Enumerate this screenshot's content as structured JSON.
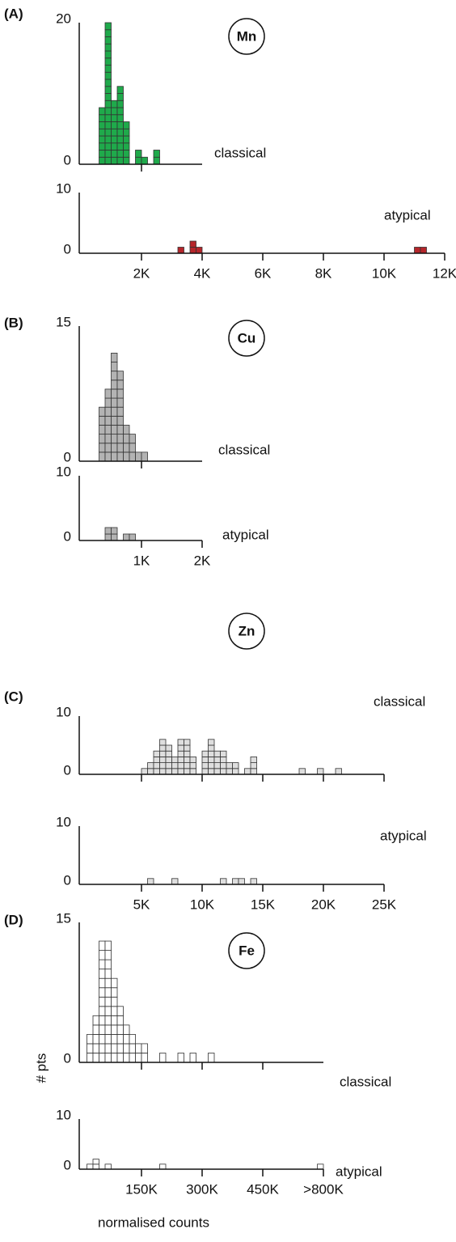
{
  "chart_data": [
    {
      "type": "histogram",
      "panel_label": "(A)",
      "element": "Mn",
      "title": "classical",
      "color": "#1faa4b",
      "bins": [
        600,
        800,
        1000,
        1200,
        1400,
        1600,
        1800,
        2000,
        2200,
        2400,
        2600
      ],
      "values": [
        8,
        20,
        9,
        11,
        6,
        0,
        2,
        1,
        0,
        2
      ],
      "xlim": [
        0,
        4000
      ],
      "xticks": [
        2000
      ],
      "tick_labels": false,
      "ylim": [
        0,
        20
      ],
      "yticks": [
        0,
        20
      ]
    },
    {
      "type": "histogram",
      "title": "atypical",
      "color": "#b5262b",
      "bins": [
        3200,
        3400,
        3600,
        3800,
        4000,
        11000,
        11200,
        11400
      ],
      "values": [
        1,
        0,
        2,
        1,
        0,
        1,
        1
      ],
      "xlim": [
        0,
        12000
      ],
      "xticks": [
        {
          "value": 2000,
          "label": "2K"
        },
        {
          "value": 4000,
          "label": "4K"
        },
        {
          "value": 6000,
          "label": "6K"
        },
        {
          "value": 8000,
          "label": "8K"
        },
        {
          "value": 10000,
          "label": "10K"
        },
        {
          "value": 12000,
          "label": "12K"
        }
      ],
      "tick_labels": true,
      "ylim": [
        0,
        10
      ],
      "yticks": [
        0,
        10
      ]
    },
    {
      "type": "histogram",
      "panel_label": "(B)",
      "element": "Cu",
      "title": "classical",
      "color": "#b3b3b3",
      "bins": [
        300,
        400,
        500,
        600,
        700,
        800,
        900,
        1000,
        1100
      ],
      "values": [
        6,
        8,
        12,
        10,
        4,
        3,
        1,
        1
      ],
      "xlim": [
        0,
        2000
      ],
      "xticks": [
        1000
      ],
      "tick_labels": false,
      "ylim": [
        0,
        15
      ],
      "yticks": [
        0,
        15
      ]
    },
    {
      "type": "histogram",
      "title": "atypical",
      "color": "#b3b3b3",
      "bins": [
        400,
        500,
        600,
        700,
        800,
        900
      ],
      "values": [
        2,
        2,
        0,
        1,
        1
      ],
      "xlim": [
        0,
        2000
      ],
      "xticks": [
        {
          "value": 1000,
          "label": "1K"
        },
        {
          "value": 2000,
          "label": "2K"
        }
      ],
      "tick_labels": true,
      "ylim": [
        0,
        10
      ],
      "yticks": [
        0,
        10
      ]
    },
    {
      "type": "histogram",
      "panel_label": "(C)",
      "element": "Zn",
      "title": "classical",
      "color": "#dedede",
      "bins": [
        5000,
        5500,
        6000,
        6500,
        7000,
        7500,
        8000,
        8500,
        9000,
        9500,
        10000,
        10500,
        11000,
        11500,
        12000,
        12500,
        13000,
        13500,
        14000,
        14500,
        18000,
        18500,
        19500,
        20000,
        21000,
        21500
      ],
      "values": [
        1,
        2,
        4,
        6,
        5,
        3,
        6,
        6,
        3,
        0,
        4,
        6,
        4,
        4,
        2,
        2,
        0,
        1,
        3,
        0,
        1,
        0,
        1,
        0,
        1
      ],
      "xlim": [
        0,
        25000
      ],
      "xticks": [
        5000,
        10000,
        15000,
        20000,
        25000
      ],
      "tick_labels": false,
      "ylim": [
        0,
        10
      ],
      "yticks": [
        0,
        10
      ]
    },
    {
      "type": "histogram",
      "title": "atypical",
      "color": "#dedede",
      "bins": [
        5500,
        6000,
        7500,
        8000,
        11500,
        12000,
        12500,
        13000,
        13500,
        14000,
        14500
      ],
      "values": [
        1,
        0,
        1,
        0,
        1,
        0,
        1,
        1,
        0,
        1
      ],
      "xlim": [
        0,
        25000
      ],
      "xticks": [
        {
          "value": 5000,
          "label": "5K"
        },
        {
          "value": 10000,
          "label": "10K"
        },
        {
          "value": 15000,
          "label": "15K"
        },
        {
          "value": 20000,
          "label": "20K"
        },
        {
          "value": 25000,
          "label": "25K"
        }
      ],
      "tick_labels": true,
      "ylim": [
        0,
        10
      ],
      "yticks": [
        0,
        10
      ]
    },
    {
      "type": "histogram",
      "panel_label": "(D)",
      "element": "Fe",
      "title": "classical",
      "ylabel": "# pts",
      "color": "#ffffff",
      "bins": [
        15000,
        30000,
        45000,
        60000,
        75000,
        90000,
        105000,
        120000,
        135000,
        150000,
        165000,
        195000,
        210000,
        240000,
        255000,
        270000,
        285000,
        315000,
        330000
      ],
      "values": [
        3,
        5,
        13,
        13,
        9,
        6,
        4,
        3,
        2,
        2,
        0,
        1,
        0,
        1,
        0,
        1,
        0,
        1
      ],
      "xlim": [
        0,
        600000
      ],
      "xticks": [
        150000,
        300000,
        450000
      ],
      "tick_labels": false,
      "ylim": [
        0,
        15
      ],
      "yticks": [
        0,
        15
      ]
    },
    {
      "type": "histogram",
      "title": "atypical",
      "xlabel": "normalised counts",
      "color": "#ffffff",
      "bins": [
        15000,
        30000,
        45000,
        60000,
        75000,
        195000,
        210000,
        585000,
        600000
      ],
      "values": [
        1,
        2,
        0,
        1,
        0,
        1,
        0,
        1
      ],
      "xlim": [
        0,
        600000
      ],
      "xticks": [
        {
          "value": 150000,
          "label": "150K"
        },
        {
          "value": 300000,
          "label": "300K"
        },
        {
          "value": 450000,
          "label": "450K"
        },
        {
          "value": 600000,
          "label": ">800K"
        }
      ],
      "tick_labels": true,
      "ylim": [
        0,
        10
      ],
      "yticks": [
        0,
        10
      ]
    }
  ]
}
